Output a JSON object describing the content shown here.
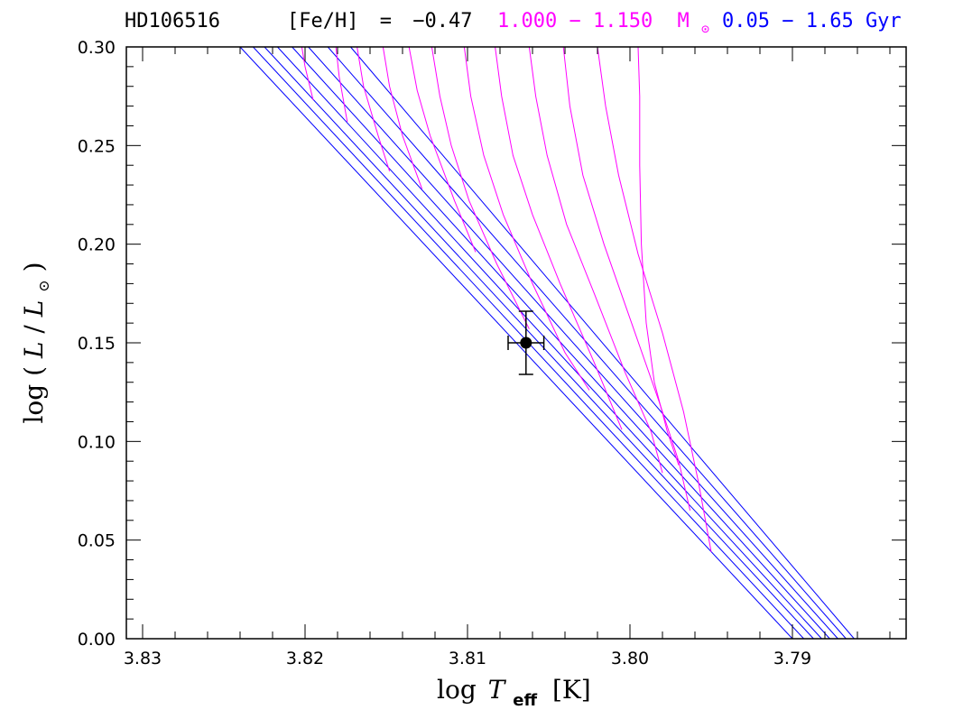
{
  "colors": {
    "mass_tracks": "#ff00ff",
    "isochrones": "#0000ff",
    "axes": "#000000",
    "star": "#000000"
  },
  "header": {
    "star_name": "HD106516",
    "metallicity_label": "[Fe/H]",
    "metallicity_eq": "=",
    "metallicity_value": "−0.47",
    "mass_range": "1.000 − 1.150",
    "mass_unit": "M",
    "mass_unit_sub": "⊙",
    "age_range": "0.05 − 1.65 Gyr"
  },
  "chart_data": {
    "type": "scatter",
    "title": "HD106516   [Fe/H] = −0.47   1.000 − 1.150 M⊙   0.05 − 1.65 Gyr",
    "xlabel": "log T_eff [K]",
    "ylabel": "log (L/L⊙)",
    "x_reversed": true,
    "xlim": [
      3.831,
      3.783
    ],
    "ylim": [
      0.0,
      0.3
    ],
    "x_ticks": [
      3.83,
      3.82,
      3.81,
      3.8,
      3.79
    ],
    "x_tick_labels": [
      "3.83",
      "3.82",
      "3.81",
      "3.80",
      "3.79"
    ],
    "y_ticks": [
      0.0,
      0.05,
      0.1,
      0.15,
      0.2,
      0.25,
      0.3
    ],
    "y_tick_labels": [
      "0.00",
      "0.05",
      "0.10",
      "0.15",
      "0.20",
      "0.25",
      "0.30"
    ],
    "grid": false,
    "star": {
      "logTeff": 3.8064,
      "logL": 0.15,
      "logTeff_err": 0.0011,
      "logL_err": 0.016
    },
    "isochrones": [
      {
        "points": [
          [
            3.824,
            0.3
          ],
          [
            3.79,
            0.0
          ]
        ]
      },
      {
        "points": [
          [
            3.8232,
            0.3
          ],
          [
            3.7893,
            0.0
          ]
        ]
      },
      {
        "points": [
          [
            3.8225,
            0.3
          ],
          [
            3.7887,
            0.0
          ]
        ]
      },
      {
        "points": [
          [
            3.8217,
            0.3
          ],
          [
            3.7882,
            0.0
          ]
        ]
      },
      {
        "points": [
          [
            3.8208,
            0.3
          ],
          [
            3.7877,
            0.0
          ]
        ]
      },
      {
        "points": [
          [
            3.8198,
            0.3
          ],
          [
            3.7872,
            0.0
          ]
        ]
      },
      {
        "points": [
          [
            3.8186,
            0.3
          ],
          [
            3.7867,
            0.0
          ]
        ]
      },
      {
        "points": [
          [
            3.8172,
            0.3
          ],
          [
            3.7862,
            0.0
          ]
        ]
      }
    ],
    "mass_tracks": [
      {
        "points": [
          [
            3.8202,
            0.3
          ],
          [
            3.82,
            0.29
          ],
          [
            3.8195,
            0.273
          ]
        ]
      },
      {
        "points": [
          [
            3.8181,
            0.3
          ],
          [
            3.8179,
            0.285
          ],
          [
            3.8174,
            0.262
          ]
        ]
      },
      {
        "points": [
          [
            3.8168,
            0.3
          ],
          [
            3.8164,
            0.28
          ],
          [
            3.8155,
            0.255
          ],
          [
            3.8148,
            0.237
          ]
        ]
      },
      {
        "points": [
          [
            3.8152,
            0.3
          ],
          [
            3.8148,
            0.28
          ],
          [
            3.814,
            0.255
          ],
          [
            3.8128,
            0.228
          ]
        ]
      },
      {
        "points": [
          [
            3.8136,
            0.3
          ],
          [
            3.8131,
            0.278
          ],
          [
            3.8123,
            0.255
          ],
          [
            3.8108,
            0.222
          ],
          [
            3.8095,
            0.196
          ]
        ]
      },
      {
        "points": [
          [
            3.8122,
            0.3
          ],
          [
            3.8117,
            0.275
          ],
          [
            3.811,
            0.25
          ],
          [
            3.8099,
            0.222
          ],
          [
            3.8082,
            0.19
          ],
          [
            3.8062,
            0.157
          ]
        ]
      },
      {
        "points": [
          [
            3.8102,
            0.3
          ],
          [
            3.8098,
            0.275
          ],
          [
            3.809,
            0.245
          ],
          [
            3.8078,
            0.215
          ],
          [
            3.806,
            0.18
          ],
          [
            3.804,
            0.145
          ],
          [
            3.8025,
            0.126
          ]
        ]
      },
      {
        "points": [
          [
            3.8083,
            0.3
          ],
          [
            3.8079,
            0.275
          ],
          [
            3.8072,
            0.245
          ],
          [
            3.806,
            0.215
          ],
          [
            3.8043,
            0.18
          ],
          [
            3.8022,
            0.14
          ],
          [
            3.8005,
            0.106
          ]
        ]
      },
      {
        "points": [
          [
            3.8062,
            0.3
          ],
          [
            3.8058,
            0.275
          ],
          [
            3.8051,
            0.245
          ],
          [
            3.8039,
            0.21
          ],
          [
            3.8022,
            0.175
          ],
          [
            3.8003,
            0.135
          ],
          [
            3.7987,
            0.105
          ],
          [
            3.798,
            0.084
          ]
        ]
      },
      {
        "points": [
          [
            3.8041,
            0.3
          ],
          [
            3.8037,
            0.27
          ],
          [
            3.8029,
            0.235
          ],
          [
            3.8016,
            0.2
          ],
          [
            3.7999,
            0.16
          ],
          [
            3.7982,
            0.12
          ],
          [
            3.797,
            0.09
          ],
          [
            3.7963,
            0.065
          ]
        ]
      },
      {
        "points": [
          [
            3.802,
            0.3
          ],
          [
            3.8015,
            0.27
          ],
          [
            3.8007,
            0.235
          ],
          [
            3.7995,
            0.195
          ],
          [
            3.798,
            0.155
          ],
          [
            3.7967,
            0.115
          ],
          [
            3.7958,
            0.08
          ],
          [
            3.795,
            0.044
          ]
        ]
      },
      {
        "points": [
          [
            3.7995,
            0.3
          ],
          [
            3.7994,
            0.275
          ],
          [
            3.7994,
            0.24
          ],
          [
            3.7993,
            0.2
          ],
          [
            3.799,
            0.16
          ],
          [
            3.7985,
            0.13
          ],
          [
            3.7977,
            0.105
          ],
          [
            3.797,
            0.088
          ]
        ]
      }
    ]
  }
}
